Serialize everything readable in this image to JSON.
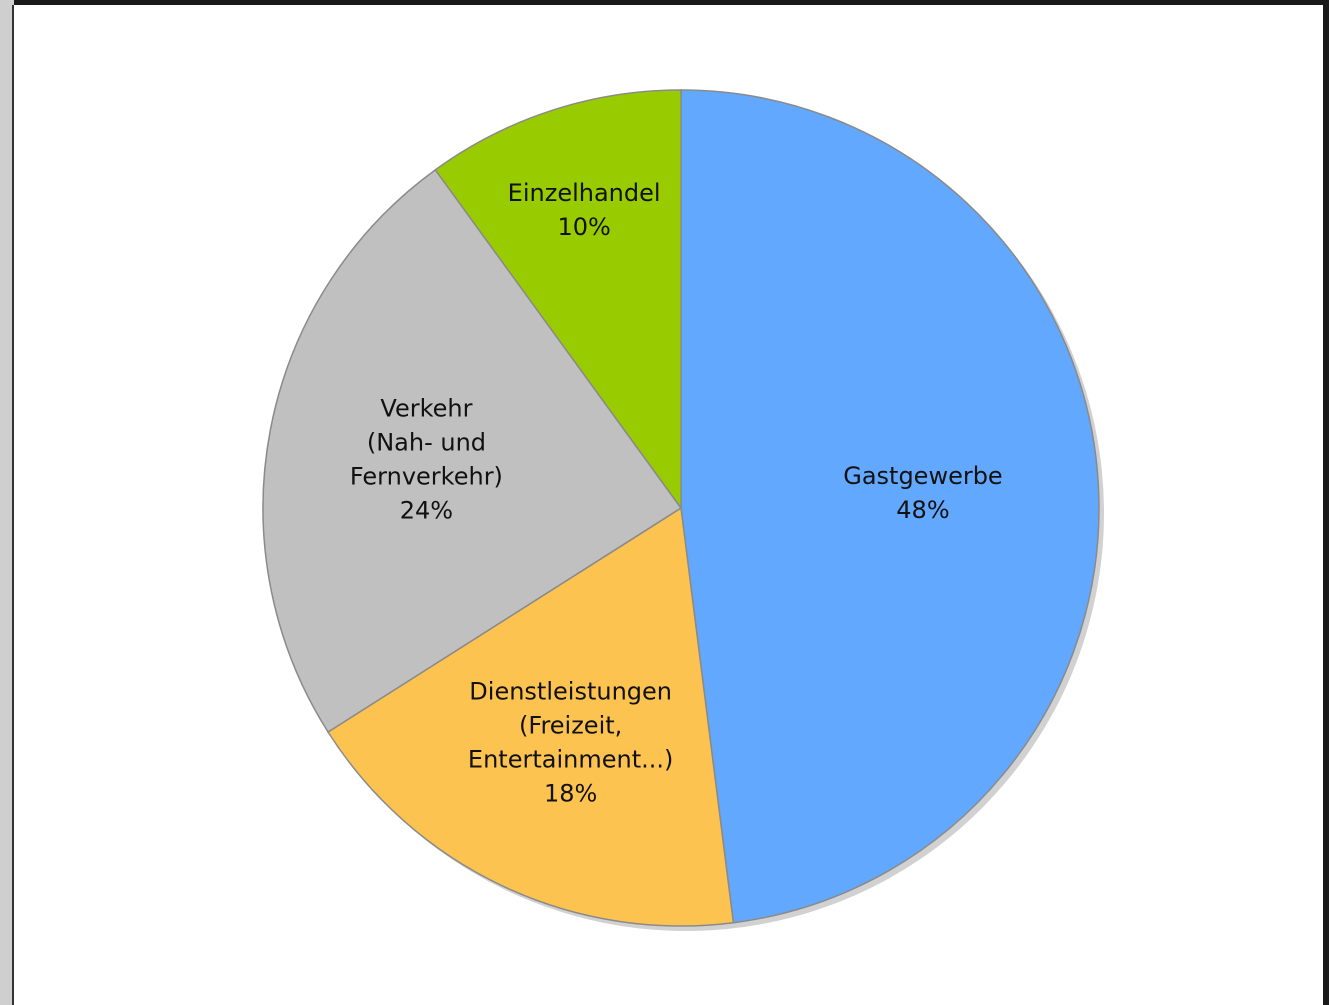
{
  "chart_data": {
    "type": "pie",
    "title": "",
    "slices": [
      {
        "name": "Gastgewerbe",
        "label_lines": [
          "Gastgewerbe",
          "48%"
        ],
        "value": 48,
        "color": "#62a8fe"
      },
      {
        "name": "Dienstleistungen (Freizeit, Entertainment...)",
        "label_lines": [
          "Dienstleistungen",
          "(Freizeit,",
          "Entertainment...)",
          "18%"
        ],
        "value": 18,
        "color": "#fdc350"
      },
      {
        "name": "Verkehr (Nah- und Fernverkehr)",
        "label_lines": [
          "Verkehr",
          "(Nah- und",
          "Fernverkehr)",
          "24%"
        ],
        "value": 24,
        "color": "#c0c0c0"
      },
      {
        "name": "Einzelhandel",
        "label_lines": [
          "Einzelhandel",
          "10%"
        ],
        "value": 10,
        "color": "#99cc00"
      }
    ],
    "start_angle": "12 o'clock",
    "direction": "clockwise",
    "legend": "none"
  }
}
